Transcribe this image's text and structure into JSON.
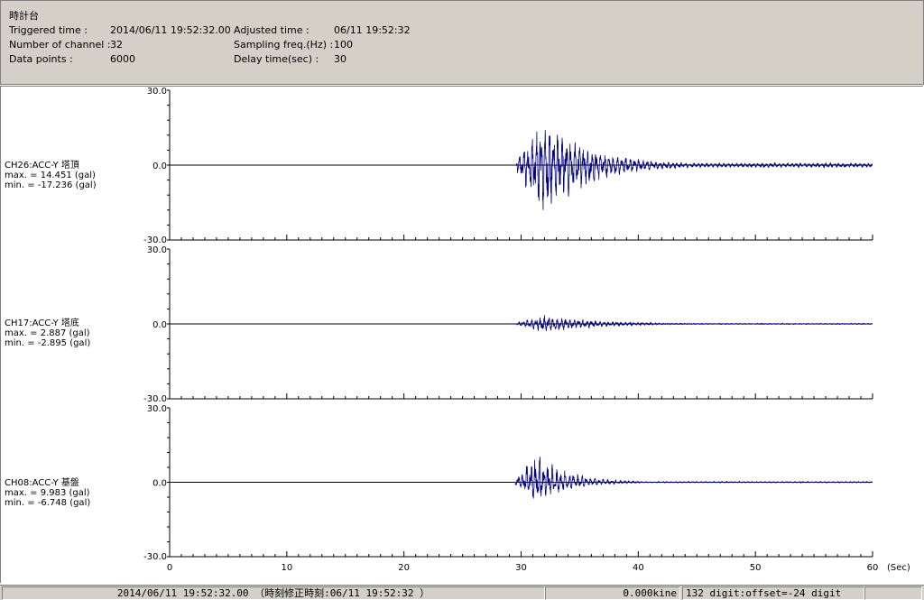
{
  "header": {
    "title": "時計台",
    "triggered_label": "Triggered time :",
    "triggered_value": "2014/06/11 19:52:32.00",
    "adjusted_label": "Adjusted time :",
    "adjusted_value": "06/11 19:52:32",
    "channels_label": "Number of channel :",
    "channels_value": "32",
    "sampling_label": "Sampling freq.(Hz) :",
    "sampling_value": "100",
    "points_label": "Data points :",
    "points_value": "6000",
    "delay_label": "Delay time(sec) :",
    "delay_value": "30"
  },
  "chart_data": {
    "type": "line",
    "x_unit": "(Sec)",
    "xlim": [
      0,
      60
    ],
    "x_ticks": [
      "0",
      "10",
      "20",
      "30",
      "40",
      "50",
      "60"
    ],
    "ylim": [
      -30,
      30
    ],
    "y_ticks": [
      "30.0",
      "0.0",
      "-30.0"
    ],
    "series": [
      {
        "name": "CH26:ACC-Y 塔頂",
        "max_text": "max. = 14.451 (gal)",
        "min_text": "min. = -17.236 (gal)",
        "max": 14.451,
        "min": -17.236,
        "onset": 29.6,
        "peak_t": 32.0,
        "decay": 4.0,
        "tail": 1.3
      },
      {
        "name": "CH17:ACC-Y 塔底",
        "max_text": "max. = 2.887 (gal)",
        "min_text": "min. = -2.895 (gal)",
        "max": 2.887,
        "min": -2.895,
        "onset": 29.6,
        "peak_t": 32.0,
        "decay": 4.5,
        "tail": 0.35
      },
      {
        "name": "CH08:ACC-Y 基盤",
        "max_text": "max. = 9.983 (gal)",
        "min_text": "min. = -6.748 (gal)",
        "max": 9.983,
        "min": -6.748,
        "onset": 29.5,
        "peak_t": 31.5,
        "decay": 2.5,
        "tail": 0.5
      }
    ],
    "line_color": "#000080"
  },
  "status": {
    "time_text": "2014/06/11 19:52:32.00 （時刻修正時刻:06/11 19:52:32 ）",
    "velocity_text": "0.000kine",
    "digit_text": "132 digit:offset=-24 digit"
  }
}
